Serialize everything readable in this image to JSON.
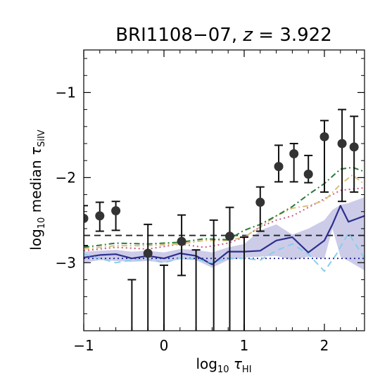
{
  "chart_data": {
    "type": "line",
    "title_main": "BRI1108−07,",
    "title_z_var": "z",
    "title_z_value": " = 3.922",
    "xlabel": {
      "prefix": "log",
      "sub": "10",
      "var": "τ",
      "varsub": "HI"
    },
    "ylabel": {
      "prefix": "log",
      "sub": "10",
      "mid": " median ",
      "var": "τ",
      "varsub": "SiIV"
    },
    "xlim": [
      -1,
      2.5
    ],
    "ylim": [
      -3.8,
      -0.5
    ],
    "xticks": [
      -1,
      0,
      1,
      2
    ],
    "xtick_labels": [
      "−1",
      "0",
      "1",
      "2"
    ],
    "yticks": [
      -3,
      -2,
      -1
    ],
    "ytick_labels": [
      "−3",
      "−2",
      "−1"
    ],
    "horizontal_lines": [
      {
        "y": -2.68,
        "style": "dashed",
        "color": "#222222"
      },
      {
        "y": -2.95,
        "style": "dotted",
        "color": "#1a1a8c"
      }
    ],
    "points": {
      "color": "#333333",
      "data": [
        {
          "x": -1.0,
          "y": -2.48,
          "lo": -2.8,
          "hi": -2.33
        },
        {
          "x": -0.8,
          "y": -2.45,
          "lo": -2.63,
          "hi": -2.29
        },
        {
          "x": -0.6,
          "y": -2.39,
          "lo": -2.62,
          "hi": -2.28
        },
        {
          "x": -0.4,
          "y": null,
          "lo": -4.0,
          "hi": -3.2
        },
        {
          "x": -0.2,
          "y": -2.89,
          "lo": -4.0,
          "hi": -2.55
        },
        {
          "x": 0.0,
          "y": null,
          "lo": -4.0,
          "hi": -3.03
        },
        {
          "x": 0.22,
          "y": -2.75,
          "lo": -3.15,
          "hi": -2.44
        },
        {
          "x": 0.4,
          "y": null,
          "lo": -4.0,
          "hi": -2.85
        },
        {
          "x": 0.62,
          "y": null,
          "lo": -4.0,
          "hi": -2.5
        },
        {
          "x": 0.82,
          "y": -2.69,
          "lo": -4.0,
          "hi": -2.35
        },
        {
          "x": 1.0,
          "y": null,
          "lo": -4.0,
          "hi": -2.7
        },
        {
          "x": 1.2,
          "y": -2.29,
          "lo": -2.63,
          "hi": -2.11
        },
        {
          "x": 1.43,
          "y": -1.87,
          "lo": -2.05,
          "hi": -1.62
        },
        {
          "x": 1.62,
          "y": -1.72,
          "lo": -2.05,
          "hi": -1.6
        },
        {
          "x": 1.8,
          "y": -1.96,
          "lo": -2.06,
          "hi": -1.74
        },
        {
          "x": 2.0,
          "y": -1.52,
          "lo": -2.17,
          "hi": -1.33
        },
        {
          "x": 2.22,
          "y": -1.6,
          "lo": -2.28,
          "hi": -1.2
        },
        {
          "x": 2.37,
          "y": -1.64,
          "lo": -2.17,
          "hi": -1.28
        }
      ]
    },
    "band": {
      "color": "#8f8fcf",
      "x": [
        -1.0,
        -0.8,
        -0.6,
        -0.4,
        -0.2,
        0.0,
        0.2,
        0.4,
        0.6,
        0.8,
        1.0,
        1.2,
        1.4,
        1.6,
        1.8,
        2.0,
        2.1,
        2.2,
        2.3,
        2.5
      ],
      "upper": [
        -2.87,
        -2.86,
        -2.85,
        -2.87,
        -2.86,
        -2.88,
        -2.84,
        -2.85,
        -2.88,
        -2.82,
        -2.78,
        -2.62,
        -2.55,
        -2.67,
        -2.6,
        -2.5,
        -2.38,
        -2.32,
        -2.3,
        -2.23
      ],
      "lower": [
        -3.0,
        -2.97,
        -2.98,
        -2.99,
        -2.98,
        -3.0,
        -2.96,
        -2.97,
        -3.06,
        -2.97,
        -2.94,
        -2.93,
        -2.92,
        -2.97,
        -2.93,
        -2.95,
        -2.6,
        -2.93,
        -2.98,
        -3.09
      ]
    },
    "series": [
      {
        "color": "#2e2e8e",
        "style": "solid",
        "width": 2.2,
        "x": [
          -1.0,
          -0.8,
          -0.6,
          -0.4,
          -0.2,
          0.0,
          0.2,
          0.4,
          0.6,
          0.8,
          1.0,
          1.2,
          1.4,
          1.6,
          1.8,
          2.0,
          2.1,
          2.2,
          2.3,
          2.5
        ],
        "y": [
          -2.94,
          -2.91,
          -2.9,
          -2.95,
          -2.92,
          -2.95,
          -2.89,
          -2.92,
          -3.02,
          -2.87,
          -2.87,
          -2.86,
          -2.74,
          -2.7,
          -2.88,
          -2.74,
          -2.55,
          -2.33,
          -2.52,
          -2.45
        ]
      },
      {
        "color": "#87ceeb",
        "style": "dashed",
        "width": 2,
        "x": [
          -1.0,
          -0.8,
          -0.6,
          -0.4,
          -0.2,
          0.0,
          0.2,
          0.4,
          0.6,
          0.8,
          1.0,
          1.2,
          1.4,
          1.6,
          1.8,
          2.0,
          2.15,
          2.3,
          2.5
        ],
        "y": [
          -2.9,
          -2.95,
          -3.0,
          -2.97,
          -2.96,
          -3.0,
          -2.95,
          -2.96,
          -3.0,
          -2.95,
          -2.95,
          -2.97,
          -2.86,
          -2.78,
          -2.9,
          -3.1,
          -2.9,
          -2.65,
          -2.95
        ]
      },
      {
        "color": "#c85a8a",
        "style": "dotted",
        "width": 2,
        "x": [
          -1.0,
          -0.6,
          -0.2,
          0.2,
          0.5,
          0.8,
          1.0,
          1.2,
          1.4,
          1.6,
          1.8,
          2.0,
          2.2,
          2.5
        ],
        "y": [
          -2.86,
          -2.82,
          -2.84,
          -2.78,
          -2.82,
          -2.77,
          -2.7,
          -2.58,
          -2.5,
          -2.45,
          -2.35,
          -2.25,
          -2.15,
          -2.12
        ]
      },
      {
        "color": "#d9c27a",
        "style": "dashdot",
        "width": 2,
        "x": [
          -1.0,
          -0.6,
          -0.2,
          0.2,
          0.5,
          0.8,
          1.0,
          1.2,
          1.4,
          1.6,
          1.8,
          2.0,
          2.2,
          2.35,
          2.5
        ],
        "y": [
          -2.84,
          -2.8,
          -2.8,
          -2.78,
          -2.74,
          -2.74,
          -2.7,
          -2.58,
          -2.45,
          -2.36,
          -2.33,
          -2.27,
          -2.08,
          -1.97,
          -2.08
        ]
      },
      {
        "color": "#2a7a3a",
        "style": "dashdot",
        "width": 2,
        "x": [
          -1.0,
          -0.6,
          -0.2,
          0.2,
          0.5,
          0.8,
          1.0,
          1.2,
          1.4,
          1.6,
          1.8,
          2.0,
          2.2,
          2.35,
          2.5
        ],
        "y": [
          -2.82,
          -2.77,
          -2.78,
          -2.76,
          -2.72,
          -2.73,
          -2.62,
          -2.55,
          -2.45,
          -2.34,
          -2.2,
          -2.07,
          -1.9,
          -1.88,
          -1.93
        ]
      }
    ]
  }
}
